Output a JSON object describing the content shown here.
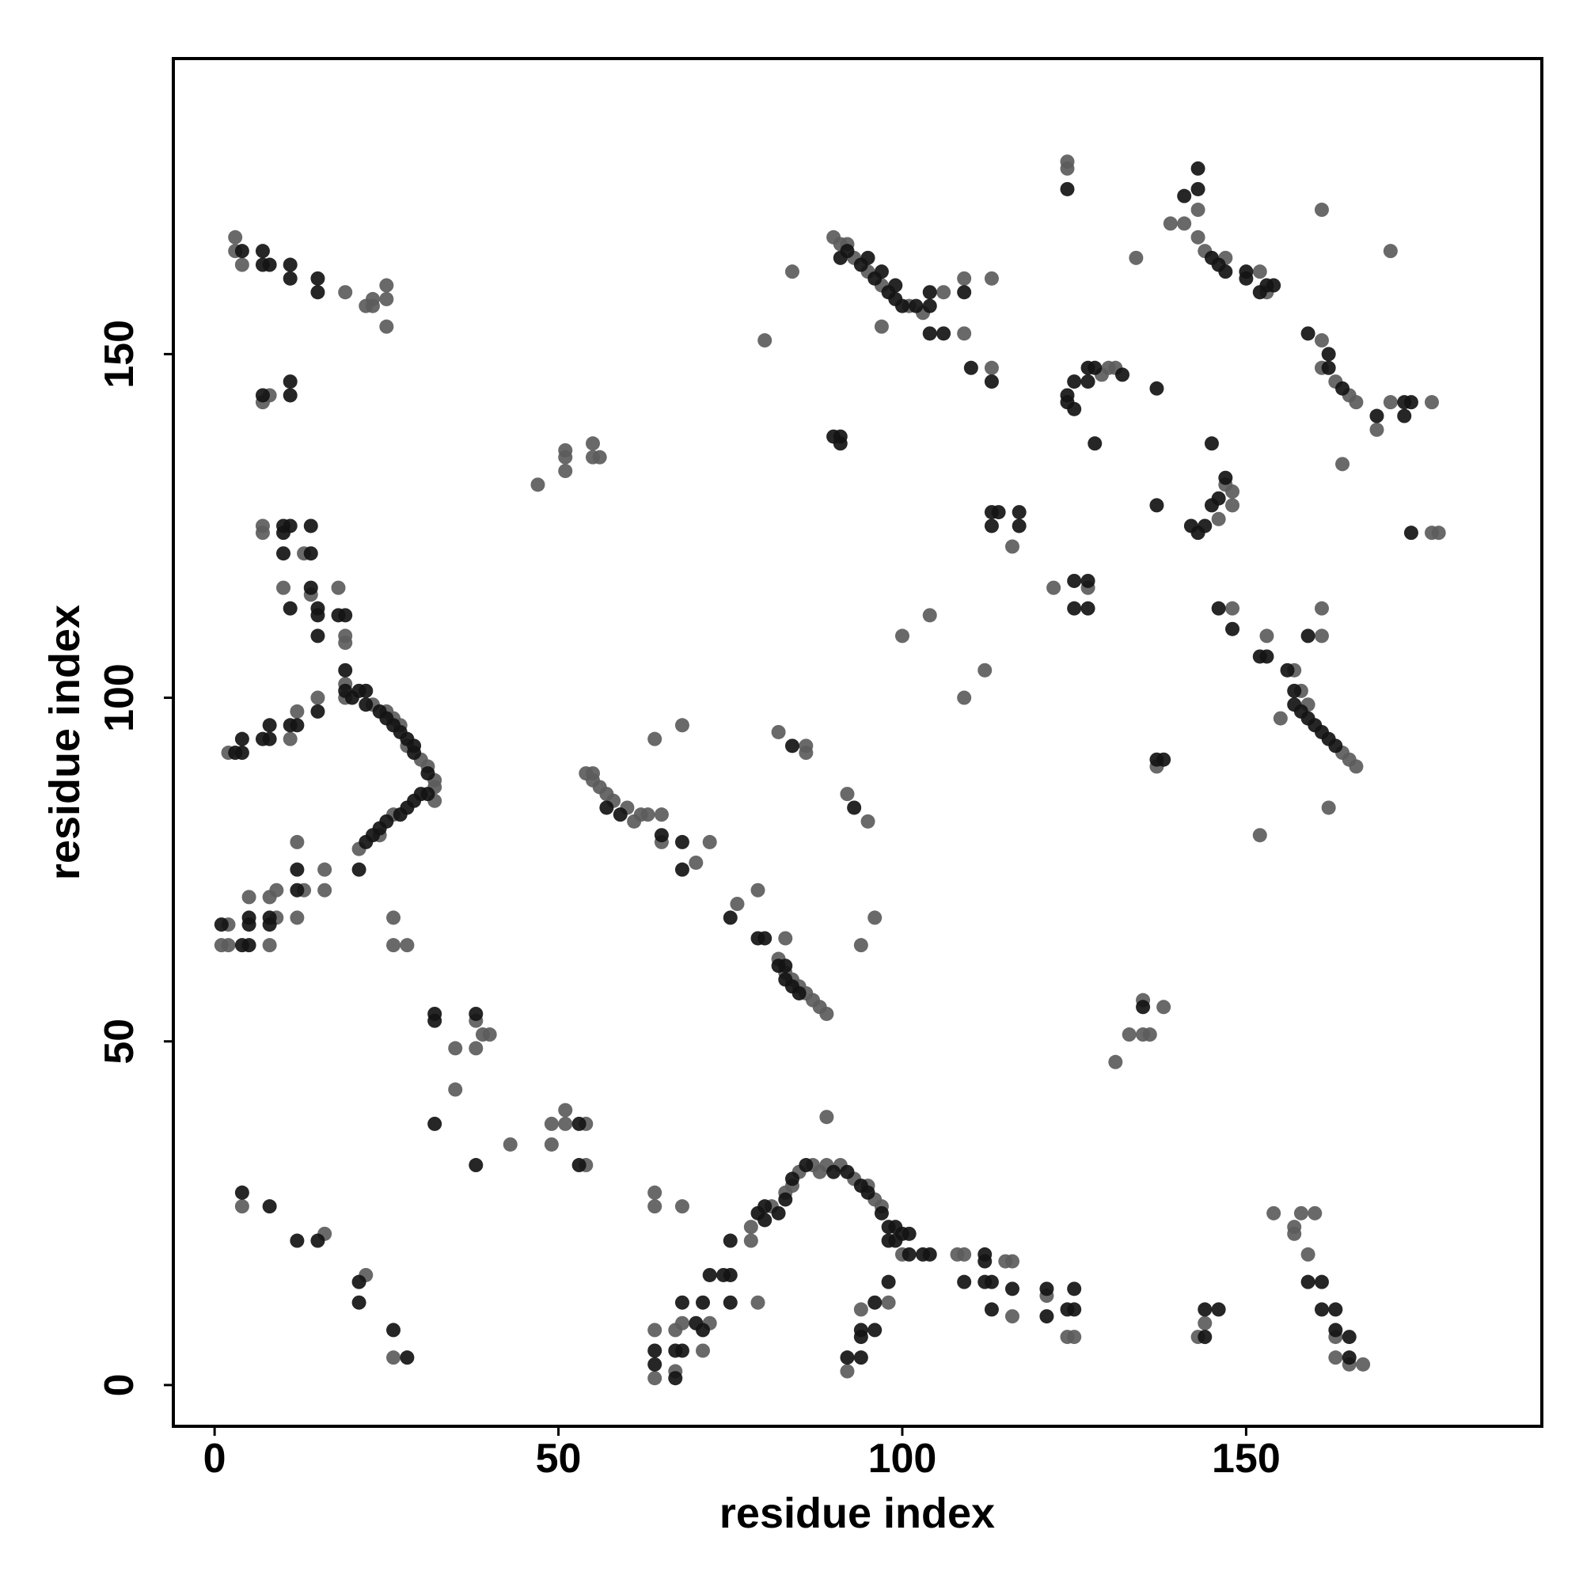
{
  "chart_data": {
    "type": "scatter",
    "x_label": "residue index",
    "y_label": "residue index",
    "xlim": [
      -6,
      193
    ],
    "ylim": [
      -6,
      193
    ],
    "xticks": [
      0,
      50,
      100,
      150
    ],
    "yticks": [
      0,
      50,
      100,
      150
    ],
    "series": [
      {
        "color": "#5c5c5c",
        "x": [
          3,
          3,
          4,
          19,
          22,
          23,
          23,
          25,
          25,
          25,
          7,
          8,
          7,
          7,
          13,
          10,
          14,
          18,
          19,
          19,
          19,
          19,
          23,
          25,
          26,
          27,
          28,
          30,
          31,
          32,
          32,
          26,
          24,
          21,
          32,
          12,
          11,
          2,
          15,
          2,
          1,
          2,
          5,
          8,
          9,
          9,
          8,
          12,
          13,
          16,
          16,
          12,
          26,
          26,
          28,
          38,
          39,
          40,
          35,
          38,
          35,
          43,
          49,
          51,
          51,
          54,
          49,
          54,
          4,
          16,
          22,
          26,
          47,
          51,
          51,
          51,
          55,
          55,
          56,
          54,
          55,
          55,
          56,
          57,
          58,
          60,
          61,
          62,
          63,
          65,
          65,
          70,
          72,
          64,
          68,
          76,
          79,
          83,
          82,
          83,
          84,
          85,
          86,
          87,
          88,
          89,
          82,
          86,
          86,
          80,
          84,
          92,
          95,
          94,
          96,
          100,
          104,
          109,
          112,
          90,
          91,
          93,
          95,
          97,
          101,
          103,
          106,
          109,
          113,
          109,
          113,
          97,
          92,
          124,
          124,
          134,
          143,
          139,
          141,
          143,
          144,
          147,
          152,
          153,
          161,
          171,
          129,
          130,
          131,
          146,
          148,
          147,
          148,
          161,
          161,
          163,
          165,
          166,
          169,
          171,
          177,
          164,
          177,
          178,
          116,
          122,
          127,
          148,
          153,
          157,
          161,
          161,
          164,
          165,
          166,
          158,
          159,
          155,
          152,
          162,
          137,
          131,
          133,
          135,
          136,
          135,
          138,
          154,
          158,
          160,
          157,
          157,
          159,
          163,
          163,
          167,
          165,
          143,
          144,
          64,
          64,
          68,
          64,
          64,
          67,
          67,
          68,
          79,
          72,
          71,
          78,
          78,
          81,
          83,
          84,
          85,
          87,
          88,
          89,
          91,
          93,
          95,
          96,
          97,
          100,
          89,
          98,
          94,
          92,
          108,
          109,
          115,
          116,
          116,
          121,
          124,
          125
        ],
        "values": [
          167,
          165,
          163,
          159,
          157,
          157,
          158,
          158,
          160,
          154,
          143,
          144,
          125,
          124,
          121,
          116,
          115,
          116,
          109,
          108,
          102,
          100,
          99,
          98,
          97,
          96,
          93,
          91,
          90,
          88,
          87,
          83,
          80,
          78,
          85,
          98,
          94,
          92,
          100,
          67,
          64,
          64,
          71,
          71,
          72,
          68,
          64,
          79,
          72,
          75,
          72,
          68,
          68,
          64,
          64,
          53,
          51,
          51,
          49,
          49,
          43,
          35,
          38,
          40,
          38,
          38,
          35,
          32,
          26,
          22,
          16,
          4,
          131,
          136,
          135,
          133,
          137,
          135,
          135,
          89,
          89,
          88,
          87,
          86,
          85,
          84,
          82,
          83,
          83,
          83,
          79,
          76,
          79,
          94,
          96,
          70,
          72,
          65,
          62,
          60,
          59,
          58,
          57,
          56,
          55,
          54,
          95,
          93,
          92,
          152,
          162,
          86,
          82,
          64,
          68,
          109,
          112,
          100,
          104,
          167,
          166,
          164,
          162,
          160,
          157,
          156,
          159,
          161,
          161,
          153,
          148,
          154,
          166,
          178,
          177,
          164,
          171,
          169,
          169,
          167,
          165,
          164,
          162,
          159,
          171,
          165,
          147,
          148,
          148,
          126,
          130,
          131,
          128,
          152,
          148,
          146,
          144,
          143,
          139,
          143,
          143,
          134,
          124,
          124,
          122,
          116,
          116,
          113,
          109,
          104,
          113,
          109,
          92,
          91,
          90,
          101,
          99,
          97,
          80,
          84,
          90,
          47,
          51,
          51,
          51,
          56,
          55,
          25,
          25,
          25,
          23,
          22,
          19,
          7,
          4,
          3,
          3,
          7,
          9,
          28,
          26,
          26,
          8,
          1,
          2,
          8,
          9,
          12,
          9,
          5,
          23,
          21,
          26,
          28,
          29,
          31,
          32,
          31,
          32,
          32,
          30,
          29,
          27,
          26,
          19,
          39,
          12,
          11,
          2,
          19,
          19,
          18,
          18,
          10,
          13,
          7,
          7
        ]
      },
      {
        "color": "#141414",
        "x": [
          4,
          7,
          7,
          8,
          11,
          11,
          15,
          15,
          7,
          11,
          11,
          10,
          11,
          10,
          14,
          10,
          14,
          14,
          11,
          15,
          15,
          15,
          18,
          19,
          19,
          19,
          20,
          21,
          22,
          22,
          24,
          25,
          26,
          27,
          28,
          29,
          29,
          31,
          31,
          30,
          29,
          28,
          27,
          25,
          24,
          23,
          22,
          21,
          11,
          12,
          8,
          7,
          8,
          4,
          3,
          4,
          15,
          1,
          4,
          5,
          5,
          5,
          8,
          8,
          12,
          12,
          32,
          32,
          38,
          32,
          38,
          53,
          53,
          4,
          8,
          12,
          15,
          21,
          21,
          26,
          28,
          57,
          59,
          65,
          68,
          68,
          75,
          79,
          80,
          82,
          83,
          84,
          85,
          83,
          84,
          90,
          91,
          91,
          93,
          92,
          94,
          96,
          98,
          99,
          100,
          104,
          104,
          104,
          106,
          109,
          110,
          113,
          91,
          95,
          97,
          99,
          102,
          124,
          143,
          143,
          141,
          145,
          146,
          147,
          150,
          150,
          153,
          154,
          152,
          124,
          124,
          125,
          125,
          127,
          127,
          128,
          132,
          128,
          137,
          137,
          142,
          143,
          144,
          145,
          146,
          147,
          145,
          159,
          162,
          162,
          164,
          169,
          173,
          174,
          173,
          174,
          113,
          114,
          117,
          113,
          117,
          125,
          127,
          125,
          127,
          146,
          148,
          152,
          153,
          156,
          159,
          157,
          157,
          158,
          159,
          160,
          161,
          162,
          163,
          137,
          138,
          135,
          159,
          161,
          161,
          163,
          163,
          165,
          165,
          144,
          144,
          146,
          64,
          64,
          67,
          67,
          68,
          70,
          68,
          71,
          72,
          74,
          75,
          75,
          71,
          75,
          79,
          80,
          80,
          82,
          83,
          84,
          86,
          90,
          92,
          94,
          95,
          97,
          98,
          99,
          98,
          99,
          100,
          101,
          101,
          103,
          104,
          98,
          96,
          96,
          94,
          94,
          92,
          94,
          109,
          112,
          112,
          112,
          113,
          113,
          116,
          121,
          121,
          124,
          125,
          125
        ],
        "values": [
          165,
          165,
          163,
          163,
          163,
          161,
          161,
          159,
          144,
          144,
          146,
          125,
          125,
          124,
          125,
          121,
          121,
          116,
          113,
          113,
          112,
          109,
          112,
          112,
          104,
          101,
          100,
          101,
          101,
          99,
          98,
          97,
          96,
          95,
          94,
          93,
          92,
          89,
          86,
          86,
          85,
          84,
          83,
          82,
          81,
          80,
          79,
          75,
          96,
          96,
          96,
          94,
          94,
          94,
          92,
          92,
          98,
          67,
          64,
          64,
          67,
          68,
          67,
          68,
          72,
          75,
          54,
          53,
          54,
          38,
          32,
          38,
          32,
          28,
          26,
          21,
          21,
          15,
          12,
          8,
          4,
          84,
          83,
          80,
          79,
          75,
          68,
          65,
          65,
          61,
          61,
          58,
          57,
          59,
          93,
          138,
          138,
          137,
          84,
          165,
          163,
          161,
          159,
          158,
          157,
          157,
          159,
          153,
          153,
          159,
          148,
          146,
          164,
          164,
          162,
          160,
          157,
          174,
          177,
          174,
          173,
          164,
          163,
          162,
          162,
          161,
          160,
          160,
          159,
          144,
          143,
          146,
          142,
          146,
          148,
          148,
          147,
          137,
          145,
          128,
          125,
          124,
          125,
          128,
          129,
          132,
          137,
          153,
          150,
          148,
          145,
          141,
          143,
          143,
          141,
          124,
          127,
          127,
          127,
          125,
          125,
          117,
          117,
          113,
          113,
          113,
          110,
          106,
          106,
          104,
          109,
          101,
          99,
          98,
          97,
          96,
          95,
          94,
          93,
          91,
          91,
          55,
          15,
          15,
          11,
          11,
          8,
          7,
          4,
          7,
          11,
          11,
          5,
          3,
          1,
          5,
          5,
          9,
          12,
          12,
          16,
          16,
          16,
          12,
          8,
          21,
          25,
          26,
          24,
          25,
          27,
          30,
          32,
          31,
          31,
          29,
          28,
          25,
          23,
          23,
          21,
          21,
          22,
          22,
          19,
          19,
          19,
          15,
          12,
          8,
          8,
          7,
          4,
          4,
          15,
          19,
          18,
          15,
          15,
          11,
          14,
          14,
          10,
          11,
          14,
          11
        ]
      }
    ]
  }
}
